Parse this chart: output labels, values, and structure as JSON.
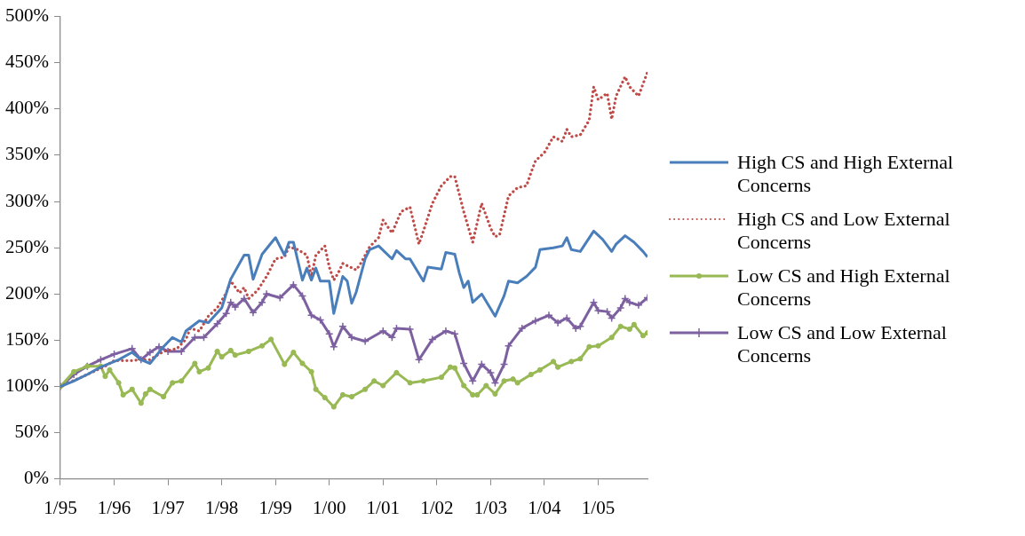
{
  "chart_data": {
    "type": "line",
    "xlim": [
      "1995-01",
      "2005-12"
    ],
    "xticks": [
      {
        "value": "1995-01",
        "label": "1/95"
      },
      {
        "value": "1996-01",
        "label": "1/96"
      },
      {
        "value": "1997-01",
        "label": "1/97"
      },
      {
        "value": "1998-01",
        "label": "1/98"
      },
      {
        "value": "1999-01",
        "label": "1/99"
      },
      {
        "value": "2000-01",
        "label": "1/00"
      },
      {
        "value": "2001-01",
        "label": "1/01"
      },
      {
        "value": "2002-01",
        "label": "1/02"
      },
      {
        "value": "2003-01",
        "label": "1/03"
      },
      {
        "value": "2004-01",
        "label": "1/04"
      },
      {
        "value": "2005-01",
        "label": "1/05"
      }
    ],
    "ylim": [
      0,
      500
    ],
    "yticks": [
      {
        "value": 0,
        "label": "0%"
      },
      {
        "value": 50,
        "label": "50%"
      },
      {
        "value": 100,
        "label": "100%"
      },
      {
        "value": 150,
        "label": "150%"
      },
      {
        "value": 200,
        "label": "200%"
      },
      {
        "value": 250,
        "label": "250%"
      },
      {
        "value": 300,
        "label": "300%"
      },
      {
        "value": 350,
        "label": "350%"
      },
      {
        "value": 400,
        "label": "400%"
      },
      {
        "value": 450,
        "label": "450%"
      },
      {
        "value": 500,
        "label": "500%"
      }
    ],
    "legend": "right",
    "series": [
      {
        "name": "High CS and High External Concerns",
        "color": "#4a7ebb",
        "line_style": "solid",
        "marker": "none",
        "x": [
          "1995-01",
          "1995-04",
          "1995-07",
          "1995-10",
          "1996-02",
          "1996-05",
          "1996-07",
          "1996-09",
          "1996-12",
          "1997-02",
          "1997-04",
          "1997-05",
          "1997-08",
          "1997-10",
          "1998-01",
          "1998-03",
          "1998-06",
          "1998-07",
          "1998-08",
          "1998-10",
          "1999-01",
          "1999-03",
          "1999-04",
          "1999-05",
          "1999-07",
          "1999-08",
          "1999-09",
          "1999-10",
          "1999-11",
          "2000-01",
          "2000-02",
          "2000-04",
          "2000-05",
          "2000-06",
          "2000-07",
          "2000-09",
          "2000-10",
          "2000-12",
          "2001-03",
          "2001-04",
          "2001-06",
          "2001-07",
          "2001-10",
          "2001-11",
          "2002-02",
          "2002-03",
          "2002-05",
          "2002-06",
          "2002-07",
          "2002-08",
          "2002-09",
          "2002-11",
          "2003-02",
          "2003-04",
          "2003-05",
          "2003-07",
          "2003-09",
          "2003-11",
          "2003-12",
          "2004-03",
          "2004-05",
          "2004-06",
          "2004-07",
          "2004-09",
          "2004-12",
          "2005-02",
          "2005-04",
          "2005-05",
          "2005-07",
          "2005-09",
          "2005-11",
          "2005-12"
        ],
        "values": [
          100,
          106,
          113,
          121,
          129,
          137,
          129,
          125,
          143,
          153,
          148,
          160,
          171,
          169,
          185,
          216,
          242,
          242,
          216,
          243,
          261,
          242,
          256,
          256,
          215,
          228,
          215,
          228,
          214,
          214,
          179,
          219,
          214,
          190,
          202,
          238,
          248,
          252,
          238,
          247,
          238,
          238,
          214,
          229,
          227,
          245,
          243,
          223,
          207,
          214,
          191,
          200,
          176,
          198,
          214,
          212,
          219,
          229,
          248,
          250,
          252,
          261,
          248,
          246,
          268,
          259,
          246,
          254,
          263,
          256,
          246,
          240
        ]
      },
      {
        "name": "High CS and Low External Concerns",
        "color": "#be4b48",
        "line_style": "dotted",
        "marker": "none",
        "x": [
          "1995-01",
          "1995-07",
          "1995-11",
          "1996-01",
          "1996-05",
          "1996-07",
          "1996-09",
          "1996-12",
          "1997-03",
          "1997-05",
          "1997-06",
          "1997-08",
          "1997-10",
          "1997-12",
          "1998-02",
          "1998-03",
          "1998-05",
          "1998-06",
          "1998-07",
          "1998-09",
          "1998-11",
          "1999-01",
          "1999-03",
          "1999-04",
          "1999-06",
          "1999-08",
          "1999-09",
          "1999-10",
          "1999-12",
          "2000-01",
          "2000-02",
          "2000-03",
          "2000-04",
          "2000-07",
          "2000-08",
          "2000-10",
          "2000-12",
          "2001-01",
          "2001-03",
          "2001-05",
          "2001-07",
          "2001-09",
          "2001-10",
          "2001-12",
          "2002-02",
          "2002-04",
          "2002-05",
          "2002-07",
          "2002-09",
          "2002-11",
          "2003-01",
          "2003-02",
          "2003-03",
          "2003-05",
          "2003-07",
          "2003-09",
          "2003-10",
          "2003-11",
          "2004-01",
          "2004-03",
          "2004-05",
          "2004-06",
          "2004-07",
          "2004-09",
          "2004-11",
          "2004-12",
          "2005-01",
          "2005-03",
          "2005-04",
          "2005-05",
          "2005-07",
          "2005-08",
          "2005-10",
          "2005-12"
        ],
        "values": [
          100,
          113,
          122,
          128,
          128,
          129,
          129,
          138,
          141,
          151,
          163,
          160,
          176,
          185,
          201,
          214,
          201,
          207,
          195,
          204,
          219,
          238,
          240,
          251,
          248,
          242,
          219,
          242,
          252,
          229,
          215,
          223,
          233,
          226,
          233,
          251,
          261,
          280,
          266,
          289,
          294,
          254,
          268,
          298,
          317,
          327,
          327,
          289,
          256,
          298,
          271,
          262,
          264,
          306,
          315,
          317,
          331,
          344,
          353,
          370,
          365,
          378,
          370,
          372,
          388,
          424,
          410,
          417,
          389,
          414,
          435,
          424,
          414,
          440
        ]
      },
      {
        "name": "Low CS and High External Concerns",
        "color": "#98b954",
        "line_style": "solid",
        "marker": "circle",
        "x": [
          "1995-01",
          "1995-04",
          "1995-07",
          "1995-10",
          "1995-11",
          "1995-12",
          "1996-02",
          "1996-03",
          "1996-05",
          "1996-07",
          "1996-08",
          "1996-09",
          "1996-12",
          "1997-02",
          "1997-04",
          "1997-07",
          "1997-08",
          "1997-10",
          "1997-12",
          "1998-01",
          "1998-03",
          "1998-04",
          "1998-07",
          "1998-10",
          "1998-12",
          "1999-03",
          "1999-05",
          "1999-07",
          "1999-09",
          "1999-10",
          "1999-12",
          "2000-02",
          "2000-04",
          "2000-06",
          "2000-09",
          "2000-11",
          "2001-01",
          "2001-04",
          "2001-07",
          "2001-10",
          "2002-02",
          "2002-04",
          "2002-05",
          "2002-07",
          "2002-09",
          "2002-10",
          "2002-12",
          "2003-02",
          "2003-04",
          "2003-06",
          "2003-07",
          "2003-10",
          "2003-12",
          "2004-03",
          "2004-04",
          "2004-07",
          "2004-09",
          "2004-11",
          "2005-01",
          "2005-04",
          "2005-06",
          "2005-08",
          "2005-09",
          "2005-11",
          "2005-12"
        ],
        "values": [
          100,
          116,
          122,
          122,
          111,
          118,
          104,
          91,
          97,
          82,
          92,
          97,
          89,
          104,
          106,
          125,
          116,
          120,
          138,
          132,
          139,
          134,
          138,
          144,
          151,
          124,
          137,
          125,
          116,
          97,
          88,
          78,
          91,
          89,
          97,
          106,
          101,
          115,
          104,
          106,
          110,
          121,
          120,
          101,
          91,
          91,
          101,
          92,
          106,
          108,
          104,
          113,
          118,
          127,
          121,
          127,
          130,
          143,
          144,
          153,
          165,
          162,
          167,
          155,
          158
        ]
      },
      {
        "name": "Low CS and Low External Concerns",
        "color": "#7d60a0",
        "line_style": "solid",
        "marker": "cross",
        "x": [
          "1995-01",
          "1995-04",
          "1995-07",
          "1995-10",
          "1996-01",
          "1996-05",
          "1996-07",
          "1996-09",
          "1996-11",
          "1997-01",
          "1997-04",
          "1997-07",
          "1997-09",
          "1997-12",
          "1998-02",
          "1998-03",
          "1998-04",
          "1998-06",
          "1998-08",
          "1998-10",
          "1998-11",
          "1999-02",
          "1999-05",
          "1999-07",
          "1999-09",
          "1999-11",
          "2000-01",
          "2000-02",
          "2000-04",
          "2000-06",
          "2000-09",
          "2001-01",
          "2001-03",
          "2001-04",
          "2001-07",
          "2001-09",
          "2001-12",
          "2002-03",
          "2002-05",
          "2002-07",
          "2002-09",
          "2002-11",
          "2003-01",
          "2003-02",
          "2003-04",
          "2003-05",
          "2003-08",
          "2003-11",
          "2004-02",
          "2004-04",
          "2004-06",
          "2004-08",
          "2004-09",
          "2004-12",
          "2005-01",
          "2005-03",
          "2005-04",
          "2005-06",
          "2005-07",
          "2005-08",
          "2005-10",
          "2005-12"
        ],
        "values": [
          100,
          113,
          122,
          129,
          135,
          141,
          129,
          137,
          143,
          138,
          138,
          153,
          153,
          168,
          179,
          191,
          186,
          195,
          180,
          191,
          200,
          196,
          210,
          198,
          177,
          172,
          157,
          143,
          165,
          153,
          149,
          160,
          153,
          163,
          162,
          129,
          151,
          160,
          157,
          125,
          106,
          124,
          115,
          104,
          124,
          144,
          163,
          171,
          177,
          169,
          174,
          163,
          165,
          191,
          182,
          181,
          174,
          185,
          195,
          191,
          188,
          196
        ]
      }
    ]
  }
}
